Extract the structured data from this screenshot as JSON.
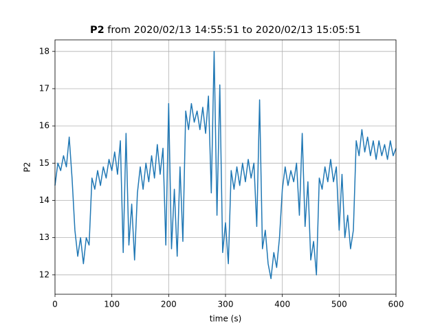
{
  "chart_data": {
    "type": "line",
    "title": "P2 from 2020/02/13 14:55:51 to 2020/02/13 15:05:51",
    "xlabel": "time (s)",
    "ylabel": "P2",
    "x": [
      0,
      5,
      10,
      15,
      20,
      25,
      30,
      35,
      40,
      45,
      50,
      55,
      60,
      65,
      70,
      75,
      80,
      85,
      90,
      95,
      100,
      105,
      110,
      115,
      120,
      125,
      130,
      135,
      140,
      145,
      150,
      155,
      160,
      165,
      170,
      175,
      180,
      185,
      190,
      195,
      200,
      205,
      210,
      215,
      220,
      225,
      230,
      235,
      240,
      245,
      250,
      255,
      260,
      265,
      270,
      275,
      280,
      285,
      290,
      295,
      300,
      305,
      310,
      315,
      320,
      325,
      330,
      335,
      340,
      345,
      350,
      355,
      360,
      365,
      370,
      375,
      380,
      385,
      390,
      395,
      400,
      405,
      410,
      415,
      420,
      425,
      430,
      435,
      440,
      445,
      450,
      455,
      460,
      465,
      470,
      475,
      480,
      485,
      490,
      495,
      500,
      505,
      510,
      515,
      520,
      525,
      530,
      535,
      540,
      545,
      550,
      555,
      560,
      565,
      570,
      575,
      580,
      585,
      590,
      595,
      600
    ],
    "series": [
      {
        "name": "P2",
        "color": "#1f77b4",
        "values": [
          14.4,
          15.0,
          14.8,
          15.2,
          14.9,
          15.7,
          14.6,
          13.2,
          12.5,
          13.0,
          12.3,
          13.0,
          12.8,
          14.6,
          14.3,
          14.8,
          14.4,
          14.9,
          14.6,
          15.1,
          14.8,
          15.3,
          14.7,
          15.6,
          12.6,
          15.8,
          12.8,
          13.9,
          12.4,
          14.2,
          14.9,
          14.3,
          15.0,
          14.5,
          15.2,
          14.6,
          15.5,
          14.7,
          15.4,
          12.8,
          16.6,
          12.7,
          14.3,
          12.5,
          14.9,
          12.9,
          16.4,
          15.9,
          16.6,
          16.1,
          16.4,
          15.9,
          16.5,
          15.8,
          16.8,
          14.2,
          18.0,
          13.6,
          17.1,
          12.6,
          13.4,
          12.3,
          14.8,
          14.3,
          14.9,
          14.4,
          15.0,
          14.5,
          15.1,
          14.6,
          15.0,
          13.3,
          16.7,
          12.7,
          13.2,
          12.3,
          11.9,
          12.6,
          12.2,
          13.0,
          14.3,
          14.9,
          14.4,
          14.8,
          14.5,
          15.0,
          13.6,
          15.8,
          13.3,
          14.5,
          12.4,
          12.9,
          12.0,
          14.6,
          14.3,
          14.9,
          14.5,
          15.1,
          14.5,
          14.9,
          13.2,
          14.7,
          13.0,
          13.6,
          12.7,
          13.2,
          15.6,
          15.2,
          15.9,
          15.3,
          15.7,
          15.2,
          15.6,
          15.1,
          15.6,
          15.2,
          15.5,
          15.1,
          15.6,
          15.2,
          15.4
        ]
      }
    ],
    "xlim": [
      0,
      600
    ],
    "xticks": [
      0,
      100,
      200,
      300,
      400,
      500,
      600
    ],
    "ylim": [
      11.48,
      18.31
    ],
    "yticks": [
      12,
      13,
      14,
      15,
      16,
      17,
      18
    ],
    "grid": true
  }
}
